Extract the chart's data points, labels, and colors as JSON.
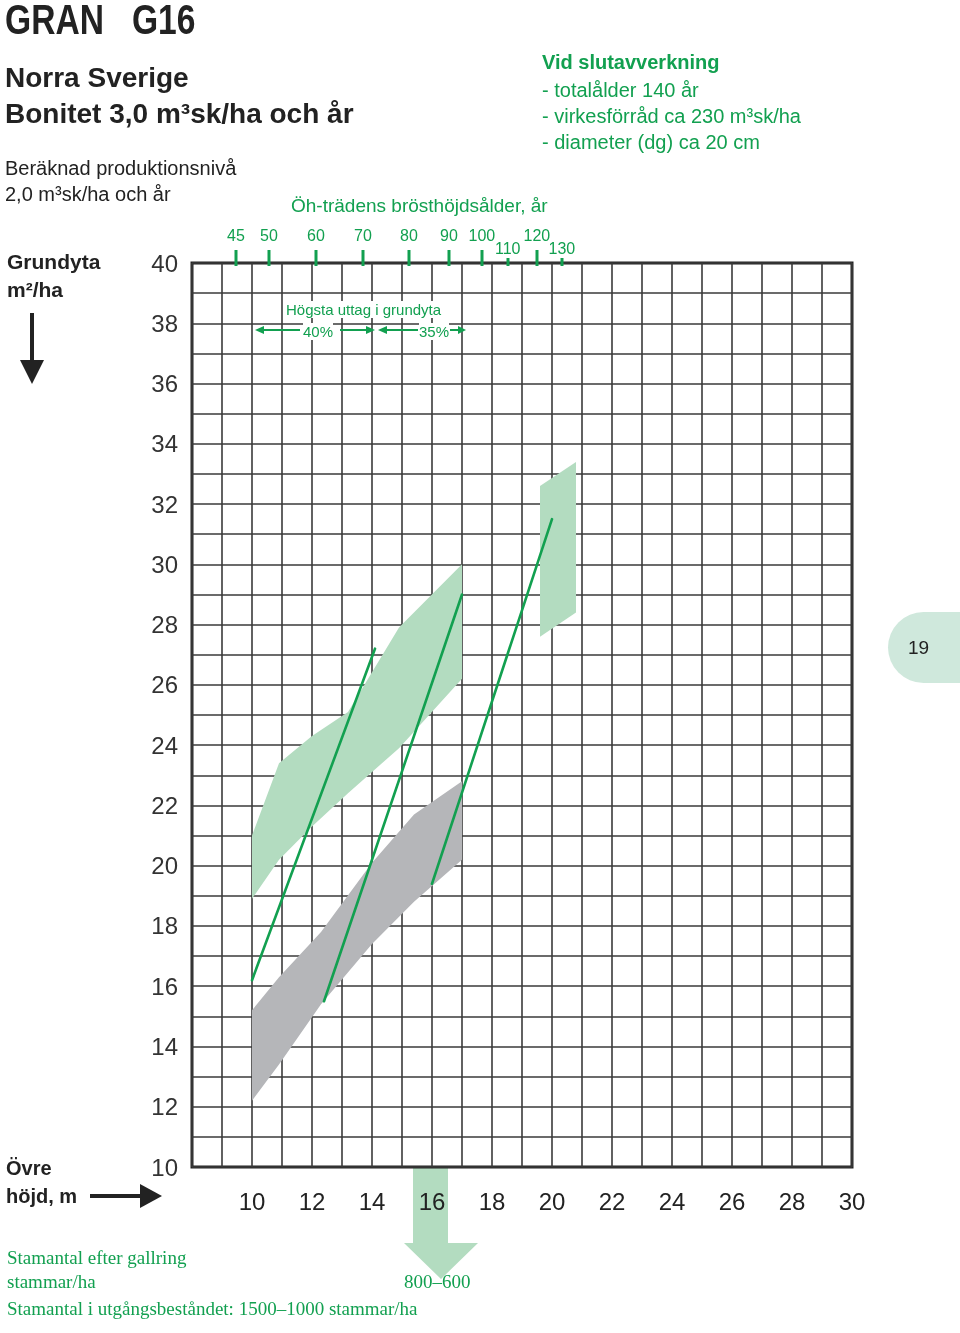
{
  "chart_data": {
    "type": "line",
    "title": "GRAN   G16",
    "subtitle": "Norra Sverige\nBonitet 3,0 m³sk/ha och år",
    "xlabel": "Övre höjd, m",
    "ylabel": "Grundyta m²/ha",
    "annotations": [
      "Beräknad produktionsnivå\n2,0 m³sk/ha och år",
      "Vid slutavverkning",
      "- totalålder 140 år\n- virkesförråd ca 230 m³sk/ha\n- diameter (dg) ca 20 cm",
      "Högsta uttag i grundyta",
      "40%",
      "35%",
      "19",
      "Stamantal efter gallring\nstammar/ha",
      "800–600",
      "Stamantal i utgångsbeståndet: 1500–1000 stammar/ha",
      "Öh-trädens brösthöjdsålder, år",
      "45",
      "50",
      "60",
      "70",
      "80",
      "90",
      "100",
      "110",
      "120",
      "130"
    ],
    "xlim": [
      8,
      30
    ],
    "xticks": [
      10,
      12,
      14,
      16,
      18,
      20,
      22,
      24,
      26,
      28,
      30
    ],
    "ylim": [
      10,
      40
    ],
    "yticks": [
      10,
      12,
      14,
      16,
      18,
      20,
      22,
      24,
      26,
      28,
      30,
      32,
      34,
      36,
      38,
      40
    ],
    "grid": true,
    "line_style": "solid",
    "series": [
      {
        "type": "area",
        "color": "#b3dcc0",
        "x": [
          10,
          10.9,
          12,
          13.2,
          14.9,
          17
        ],
        "values": [
          null,
          null,
          null,
          null,
          null,
          null
        ],
        "upper": [
          21.0,
          23.4,
          24.3,
          25.1,
          27.9,
          30.0
        ],
        "lower": [
          18.9,
          20.2,
          21.3,
          22.4,
          23.9,
          26.2
        ]
      },
      {
        "type": "area",
        "color": "#b5b6b9",
        "x": [
          10,
          10.9,
          12.3,
          14,
          15.4,
          17
        ],
        "values": [
          null,
          null,
          null,
          null,
          null,
          null
        ],
        "upper": [
          15.2,
          16.3,
          17.8,
          20.1,
          21.7,
          22.8
        ],
        "lower": [
          12.2,
          13.4,
          15.4,
          17.4,
          18.8,
          20.2
        ]
      },
      {
        "type": "area",
        "color": "#b3dcc0",
        "x": [
          19.6,
          20.8
        ],
        "values": [
          null,
          null
        ],
        "upper": [
          32.6,
          33.4
        ],
        "lower": [
          27.6,
          28.4
        ]
      },
      {
        "type": "line",
        "color": "#12a050",
        "x": [
          10.0,
          14.1
        ],
        "values": [
          16.2,
          27.2
        ]
      },
      {
        "type": "line",
        "color": "#12a050",
        "x": [
          12.4,
          17.0
        ],
        "values": [
          15.5,
          29.0
        ]
      },
      {
        "type": "line",
        "color": "#12a050",
        "x": [
          16.0,
          20.0
        ],
        "values": [
          19.4,
          31.5
        ]
      }
    ]
  }
}
